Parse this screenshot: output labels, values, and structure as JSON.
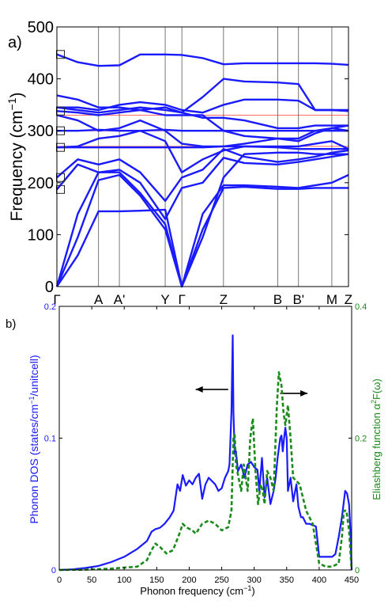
{
  "colors": {
    "band": "#1a1aff",
    "guide": "#ff6a6a",
    "dos": "#1a1aff",
    "eliashberg": "#1a8a1a",
    "axis": "#000000",
    "right_axis": "#1a8a1a"
  },
  "chart_data": [
    {
      "panel_label": "a)",
      "type": "line",
      "ylabel": "Frequency (cm",
      "ylabel_sup": "−1",
      "ylabel_tail": ")",
      "ylim": [
        0,
        500
      ],
      "yticks": [
        0,
        100,
        200,
        300,
        400,
        500
      ],
      "high_symmetry_points": [
        {
          "label": "Γ",
          "k": 0
        },
        {
          "label": "A",
          "k": 1.0
        },
        {
          "label": "A'",
          "k": 1.5
        },
        {
          "label": "Y",
          "k": 2.6
        },
        {
          "label": "Γ",
          "k": 3.0
        },
        {
          "label": "Z",
          "k": 4.0
        },
        {
          "label": "B",
          "k": 5.3
        },
        {
          "label": "B'",
          "k": 5.8
        },
        {
          "label": "M",
          "k": 6.6
        },
        {
          "label": "Z",
          "k": 7.0
        }
      ],
      "horizontal_guides": [
        270,
        300,
        330
      ],
      "markers": [
        447,
        338,
        300,
        268,
        210,
        187
      ],
      "bands": [
        {
          "k": [
            0,
            0.5,
            1,
            1.5,
            2,
            2.6,
            3,
            3.5,
            4,
            4.5,
            5.3,
            5.8,
            6.2,
            6.6,
            7
          ],
          "f": [
            0,
            60,
            145,
            145,
            146,
            148,
            0,
            95,
            210,
            255,
            258,
            258,
            255,
            255,
            255
          ]
        },
        {
          "k": [
            0,
            0.5,
            1,
            1.5,
            2,
            2.6,
            3,
            3.5,
            4,
            4.5,
            5.3,
            5.8,
            6.2,
            6.6,
            7
          ],
          "f": [
            0,
            95,
            205,
            215,
            175,
            110,
            0,
            110,
            190,
            192,
            188,
            188,
            190,
            190,
            190
          ]
        },
        {
          "k": [
            0,
            0.5,
            1,
            1.5,
            2,
            2.6,
            3,
            3.5,
            4,
            4.5,
            5.3,
            5.8,
            6.2,
            6.6,
            7
          ],
          "f": [
            0,
            140,
            220,
            220,
            180,
            120,
            0,
            140,
            195,
            195,
            192,
            190,
            195,
            200,
            215
          ]
        },
        {
          "k": [
            0,
            0.5,
            1,
            1.5,
            2,
            2.6,
            3,
            3.5,
            4,
            4.5,
            5.3,
            5.8,
            6.2,
            6.6,
            7
          ],
          "f": [
            187,
            235,
            220,
            225,
            200,
            130,
            190,
            200,
            248,
            238,
            235,
            240,
            245,
            250,
            255
          ]
        },
        {
          "k": [
            0,
            0.5,
            1,
            1.5,
            2,
            2.6,
            3,
            3.5,
            4,
            4.5,
            5.3,
            5.8,
            6.2,
            6.6,
            7
          ],
          "f": [
            210,
            245,
            235,
            245,
            220,
            165,
            210,
            225,
            265,
            250,
            240,
            245,
            250,
            258,
            262
          ]
        },
        {
          "k": [
            0,
            0.5,
            1,
            1.5,
            2,
            2.6,
            3,
            3.5,
            4,
            4.5,
            5.3,
            5.8,
            6.2,
            6.6,
            7
          ],
          "f": [
            268,
            268,
            268,
            268,
            268,
            268,
            268,
            268,
            270,
            270,
            268,
            265,
            265,
            265,
            265
          ]
        },
        {
          "k": [
            0,
            0.5,
            1,
            1.5,
            2,
            2.6,
            3,
            3.5,
            4,
            4.5,
            5.3,
            5.8,
            6.2,
            6.6,
            7
          ],
          "f": [
            268,
            270,
            285,
            290,
            300,
            280,
            220,
            245,
            262,
            270,
            270,
            270,
            275,
            280,
            265
          ]
        },
        {
          "k": [
            0,
            0.5,
            1,
            1.5,
            2,
            2.6,
            3,
            3.5,
            4,
            4.5,
            5.3,
            5.8,
            6.2,
            6.6,
            7
          ],
          "f": [
            300,
            300,
            302,
            300,
            300,
            302,
            300,
            300,
            300,
            300,
            300,
            300,
            300,
            300,
            300
          ]
        },
        {
          "k": [
            0,
            0.5,
            1,
            1.5,
            2,
            2.6,
            3,
            3.5,
            4,
            4.5,
            5.3,
            5.8,
            6.2,
            6.6,
            7
          ],
          "f": [
            330,
            320,
            300,
            305,
            320,
            300,
            275,
            270,
            270,
            275,
            285,
            285,
            300,
            305,
            300
          ]
        },
        {
          "k": [
            0,
            0.5,
            1,
            1.5,
            2,
            2.6,
            3,
            3.5,
            4,
            4.5,
            5.3,
            5.8,
            6.2,
            6.6,
            7
          ],
          "f": [
            338,
            335,
            330,
            335,
            340,
            330,
            330,
            330,
            300,
            290,
            285,
            280,
            295,
            305,
            310
          ]
        },
        {
          "k": [
            0,
            0.5,
            1,
            1.5,
            2,
            2.6,
            3,
            3.5,
            4,
            4.5,
            5.3,
            5.8,
            6.2,
            6.6,
            7
          ],
          "f": [
            345,
            340,
            335,
            340,
            345,
            340,
            335,
            325,
            325,
            320,
            305,
            305,
            310,
            310,
            310
          ]
        },
        {
          "k": [
            0,
            0.5,
            1,
            1.5,
            2,
            2.6,
            3,
            3.5,
            4,
            4.5,
            5.3,
            5.8,
            6.2,
            6.6,
            7
          ],
          "f": [
            345,
            345,
            340,
            350,
            355,
            350,
            340,
            335,
            350,
            360,
            360,
            358,
            340,
            340,
            338
          ]
        },
        {
          "k": [
            0,
            0.5,
            1,
            1.5,
            2,
            2.6,
            3,
            3.5,
            4,
            4.5,
            5.3,
            5.8,
            6.2,
            6.6,
            7
          ],
          "f": [
            368,
            360,
            345,
            345,
            340,
            345,
            335,
            365,
            400,
            395,
            393,
            390,
            340,
            340,
            340
          ]
        },
        {
          "k": [
            0,
            0.5,
            1,
            1.5,
            2,
            2.6,
            3,
            3.5,
            4,
            4.5,
            5.3,
            5.8,
            6.2,
            6.6,
            7
          ],
          "f": [
            447,
            432,
            425,
            426,
            447,
            447,
            446,
            440,
            428,
            430,
            430,
            430,
            430,
            429,
            427
          ]
        }
      ]
    },
    {
      "panel_label": "b)",
      "type": "line",
      "xlabel": "Phonon frequency (cm",
      "xlabel_sup": "−1",
      "xlabel_tail": ")",
      "ylabel_left": "Phonon DOS (states/cm",
      "ylabel_left_sup": "−1",
      "ylabel_left_tail": "/unitcell)",
      "ylabel_right": "Eliashberg function α",
      "ylabel_right_sup": "2",
      "ylabel_right_tail": "F(ω)",
      "xlim": [
        0,
        450
      ],
      "xticks": [
        0,
        50,
        100,
        150,
        200,
        250,
        300,
        350,
        400,
        450
      ],
      "ylim_left": [
        0,
        0.2
      ],
      "yticks_left": [
        "0",
        "0.1",
        "0.2"
      ],
      "ylim_right": [
        0,
        0.4
      ],
      "yticks_right": [
        "0",
        "0.2",
        "0.4"
      ],
      "arrows": [
        {
          "from_x": 260,
          "to_x": 210,
          "y": 0.137
        },
        {
          "from_x": 340,
          "to_x": 382,
          "y": 0.134
        }
      ],
      "series": [
        {
          "axis": "left",
          "x": [
            0,
            20,
            40,
            60,
            80,
            100,
            120,
            135,
            142,
            148,
            155,
            162,
            170,
            176,
            182,
            186,
            190,
            195,
            200,
            205,
            210,
            215,
            220,
            225,
            230,
            240,
            245,
            250,
            255,
            260,
            262,
            265,
            267,
            268,
            270,
            272,
            275,
            280,
            285,
            290,
            295,
            300,
            305,
            308,
            312,
            316,
            320,
            325,
            330,
            333,
            336,
            340,
            342,
            344,
            346,
            348,
            350,
            352,
            356,
            360,
            365,
            368,
            372,
            375,
            380,
            385,
            390,
            395,
            398,
            400,
            410,
            420,
            425,
            430,
            435,
            440,
            443,
            446,
            448,
            450
          ],
          "y": [
            0,
            0.0005,
            0.0015,
            0.003,
            0.006,
            0.01,
            0.016,
            0.022,
            0.029,
            0.031,
            0.032,
            0.035,
            0.04,
            0.045,
            0.065,
            0.06,
            0.072,
            0.064,
            0.068,
            0.065,
            0.07,
            0.073,
            0.054,
            0.065,
            0.07,
            0.065,
            0.06,
            0.062,
            0.07,
            0.075,
            0.08,
            0.12,
            0.178,
            0.12,
            0.088,
            0.09,
            0.075,
            0.08,
            0.07,
            0.08,
            0.082,
            0.078,
            0.076,
            0.06,
            0.085,
            0.055,
            0.07,
            0.05,
            0.06,
            0.07,
            0.085,
            0.1,
            0.102,
            0.09,
            0.1,
            0.108,
            0.1,
            0.06,
            0.07,
            0.052,
            0.065,
            0.048,
            0.04,
            0.04,
            0.035,
            0.035,
            0.034,
            0.033,
            0.02,
            0.01,
            0.01,
            0.01,
            0.012,
            0.025,
            0.04,
            0.06,
            0.058,
            0.05,
            0.03,
            0.0
          ]
        },
        {
          "axis": "right",
          "x": [
            0,
            40,
            80,
            120,
            135,
            142,
            148,
            155,
            165,
            175,
            185,
            190,
            195,
            205,
            210,
            220,
            230,
            240,
            250,
            260,
            265,
            268,
            270,
            272,
            276,
            280,
            284,
            290,
            294,
            298,
            302,
            306,
            310,
            313,
            316,
            320,
            325,
            330,
            335,
            338,
            342,
            345,
            348,
            352,
            356,
            360,
            370,
            380,
            390,
            395,
            400,
            410,
            420,
            430,
            435,
            438,
            442,
            446,
            450
          ],
          "y": [
            0,
            0.0005,
            0.002,
            0.005,
            0.015,
            0.03,
            0.04,
            0.035,
            0.025,
            0.03,
            0.055,
            0.07,
            0.065,
            0.06,
            0.055,
            0.07,
            0.075,
            0.07,
            0.06,
            0.065,
            0.09,
            0.2,
            0.205,
            0.16,
            0.14,
            0.12,
            0.16,
            0.12,
            0.2,
            0.23,
            0.15,
            0.1,
            0.13,
            0.12,
            0.1,
            0.15,
            0.14,
            0.12,
            0.25,
            0.3,
            0.28,
            0.24,
            0.22,
            0.25,
            0.2,
            0.14,
            0.13,
            0.09,
            0.07,
            0.04,
            0.01,
            0.005,
            0.005,
            0.01,
            0.05,
            0.09,
            0.09,
            0.06,
            0.0
          ]
        }
      ]
    }
  ]
}
